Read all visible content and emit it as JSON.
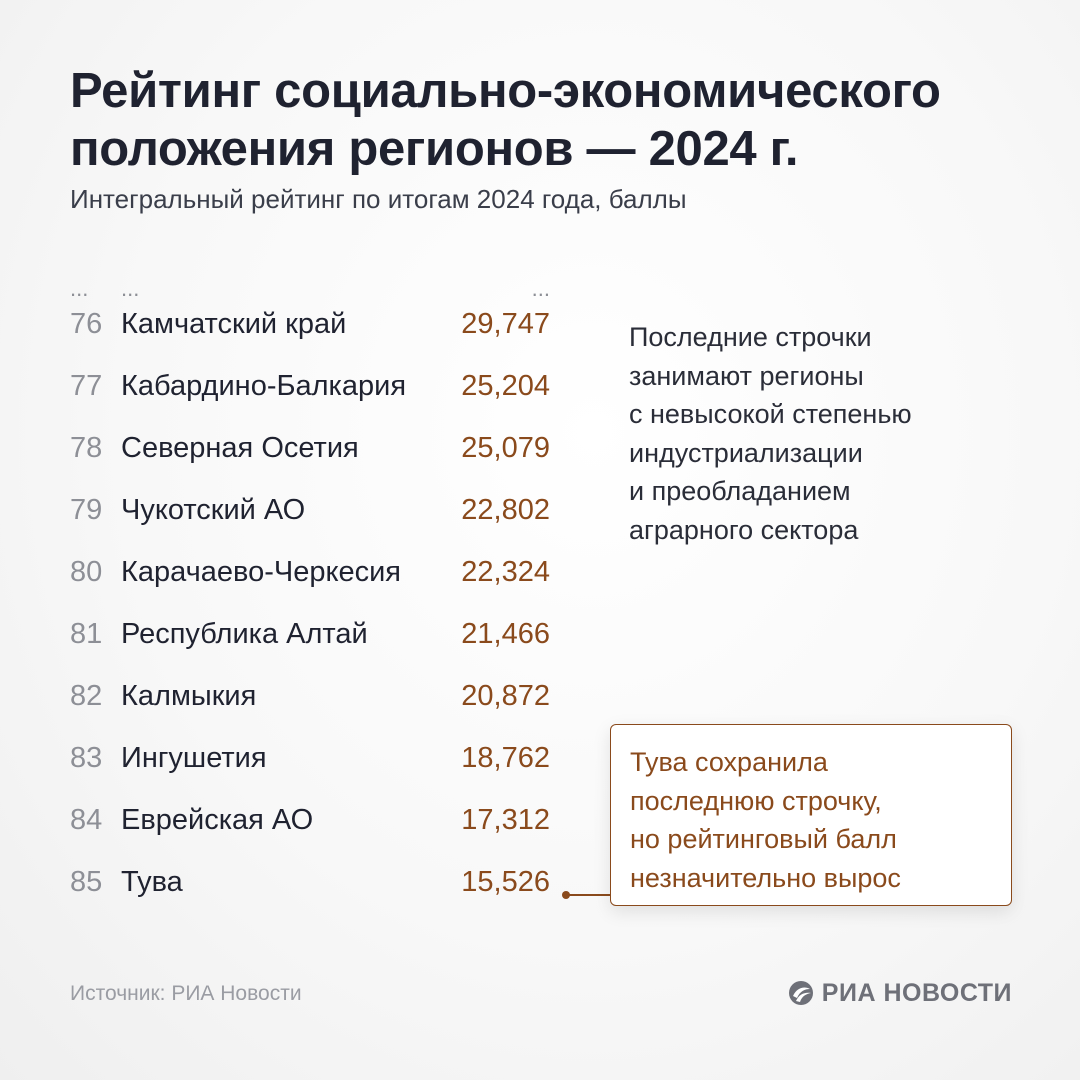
{
  "title_lines": [
    "Рейтинг социально-экономического",
    "положения регионов — 2024 г."
  ],
  "subtitle": "Интегральный рейтинг по итогам 2024 года, баллы",
  "ellipsis": "...",
  "chart_data": {
    "type": "table",
    "title": "Рейтинг социально-экономического положения регионов — 2024 г.",
    "subtitle": "Интегральный рейтинг по итогам 2024 года, баллы",
    "rows": [
      {
        "rank": "76",
        "region": "Камчатский край",
        "score": "29,747"
      },
      {
        "rank": "77",
        "region": "Кабардино-Балкария",
        "score": "25,204"
      },
      {
        "rank": "78",
        "region": "Северная Осетия",
        "score": "25,079"
      },
      {
        "rank": "79",
        "region": "Чукотский АО",
        "score": "22,802"
      },
      {
        "rank": "80",
        "region": "Карачаево-Черкесия",
        "score": "22,324"
      },
      {
        "rank": "81",
        "region": "Республика Алтай",
        "score": "21,466"
      },
      {
        "rank": "82",
        "region": "Калмыкия",
        "score": "20,872"
      },
      {
        "rank": "83",
        "region": "Ингушетия",
        "score": "18,762"
      },
      {
        "rank": "84",
        "region": "Еврейская АО",
        "score": "17,312"
      },
      {
        "rank": "85",
        "region": "Тува",
        "score": "15,526"
      }
    ]
  },
  "note_lines": [
    "Последние строчки",
    "занимают регионы",
    "с невысокой степенью",
    "индустриализации",
    "и преобладанием",
    "аграрного сектора"
  ],
  "callout_lines": [
    "Тува сохранила",
    "последнюю строчку,",
    "но рейтинговый балл",
    "незначительно вырос"
  ],
  "source": "Источник: РИА Новости",
  "logo_text": "РИА НОВОСТИ",
  "colors": {
    "accent": "#8a4a1c",
    "text": "#1f2230",
    "muted": "#8d8f96"
  }
}
